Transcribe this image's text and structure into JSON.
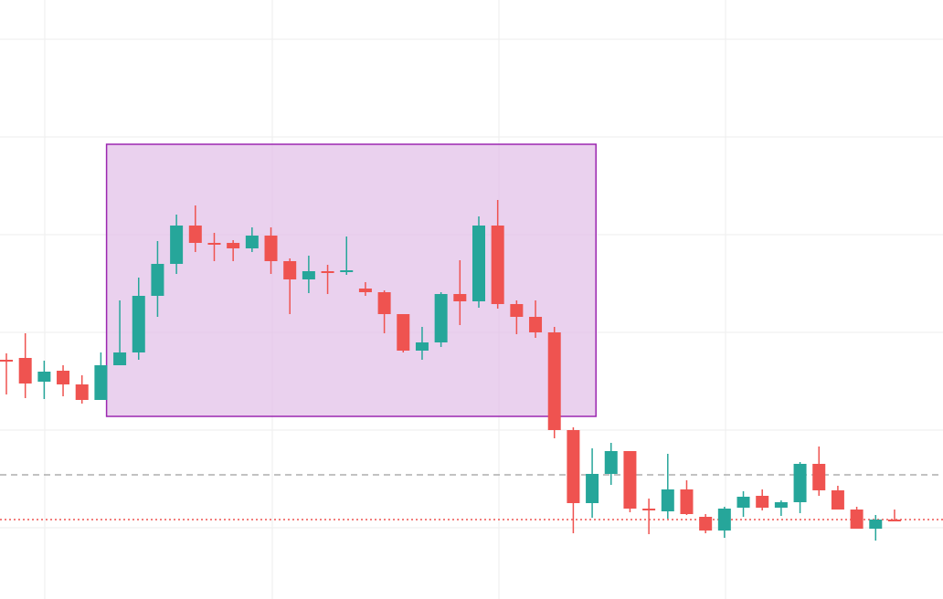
{
  "chart_data": {
    "type": "candlestick",
    "title": "",
    "xlabel": "",
    "ylabel": "",
    "ylim": [
      0,
      656
    ],
    "grid": true,
    "colors": {
      "up": "#26a69a",
      "down": "#ef5350",
      "grid": "#eeeeee",
      "dashed_line": "#9e9e9e",
      "dotted_line": "#ef5350",
      "rect_fill": "#e1bee7",
      "rect_stroke": "#9c27b0"
    },
    "reference_lines": [
      {
        "kind": "dashed",
        "value": 136
      },
      {
        "kind": "dotted",
        "value": 87
      }
    ],
    "highlight_box": {
      "x0": 5.3,
      "x1": 31.2,
      "y0": 200,
      "y1": 498
    },
    "candles": [
      {
        "i": 0,
        "o": 262,
        "h": 269,
        "l": 224,
        "c": 262
      },
      {
        "i": 1,
        "o": 264,
        "h": 291,
        "l": 220,
        "c": 236
      },
      {
        "i": 2,
        "o": 238,
        "h": 261,
        "l": 219,
        "c": 249
      },
      {
        "i": 3,
        "o": 250,
        "h": 256,
        "l": 222,
        "c": 235
      },
      {
        "i": 4,
        "o": 235,
        "h": 245,
        "l": 214,
        "c": 218
      },
      {
        "i": 5,
        "o": 218,
        "h": 270,
        "l": 218,
        "c": 256
      },
      {
        "i": 6,
        "o": 256,
        "h": 327,
        "l": 256,
        "c": 270
      },
      {
        "i": 7,
        "o": 270,
        "h": 352,
        "l": 262,
        "c": 332
      },
      {
        "i": 8,
        "o": 332,
        "h": 392,
        "l": 309,
        "c": 367
      },
      {
        "i": 9,
        "o": 367,
        "h": 421,
        "l": 356,
        "c": 409
      },
      {
        "i": 10,
        "o": 409,
        "h": 431,
        "l": 380,
        "c": 390
      },
      {
        "i": 11,
        "o": 390,
        "h": 401,
        "l": 370,
        "c": 390
      },
      {
        "i": 12,
        "o": 390,
        "h": 393,
        "l": 370,
        "c": 384
      },
      {
        "i": 13,
        "o": 384,
        "h": 407,
        "l": 380,
        "c": 398
      },
      {
        "i": 14,
        "o": 398,
        "h": 407,
        "l": 356,
        "c": 370
      },
      {
        "i": 15,
        "o": 370,
        "h": 373,
        "l": 312,
        "c": 350
      },
      {
        "i": 16,
        "o": 350,
        "h": 376,
        "l": 335,
        "c": 359
      },
      {
        "i": 17,
        "o": 359,
        "h": 366,
        "l": 334,
        "c": 359
      },
      {
        "i": 18,
        "o": 359,
        "h": 397,
        "l": 355,
        "c": 360
      },
      {
        "i": 19,
        "o": 340,
        "h": 347,
        "l": 332,
        "c": 336
      },
      {
        "i": 20,
        "o": 336,
        "h": 338,
        "l": 291,
        "c": 312
      },
      {
        "i": 21,
        "o": 312,
        "h": 312,
        "l": 270,
        "c": 272
      },
      {
        "i": 22,
        "o": 272,
        "h": 298,
        "l": 262,
        "c": 281
      },
      {
        "i": 23,
        "o": 281,
        "h": 336,
        "l": 276,
        "c": 334
      },
      {
        "i": 24,
        "o": 334,
        "h": 371,
        "l": 300,
        "c": 326
      },
      {
        "i": 25,
        "o": 326,
        "h": 419,
        "l": 319,
        "c": 409
      },
      {
        "i": 26,
        "o": 409,
        "h": 437,
        "l": 318,
        "c": 323
      },
      {
        "i": 27,
        "o": 323,
        "h": 327,
        "l": 290,
        "c": 309
      },
      {
        "i": 28,
        "o": 309,
        "h": 327,
        "l": 286,
        "c": 292
      },
      {
        "i": 29,
        "o": 292,
        "h": 298,
        "l": 176,
        "c": 185
      },
      {
        "i": 30,
        "o": 185,
        "h": 188,
        "l": 72,
        "c": 105
      },
      {
        "i": 31,
        "o": 105,
        "h": 165,
        "l": 89,
        "c": 137
      },
      {
        "i": 32,
        "o": 137,
        "h": 171,
        "l": 125,
        "c": 162
      },
      {
        "i": 33,
        "o": 162,
        "h": 162,
        "l": 95,
        "c": 99
      },
      {
        "i": 34,
        "o": 99,
        "h": 110,
        "l": 71,
        "c": 99
      },
      {
        "i": 35,
        "o": 96,
        "h": 159,
        "l": 88,
        "c": 120
      },
      {
        "i": 36,
        "o": 120,
        "h": 130,
        "l": 92,
        "c": 93
      },
      {
        "i": 37,
        "o": 90,
        "h": 93,
        "l": 72,
        "c": 75
      },
      {
        "i": 38,
        "o": 75,
        "h": 101,
        "l": 67,
        "c": 99
      },
      {
        "i": 39,
        "o": 100,
        "h": 118,
        "l": 90,
        "c": 112
      },
      {
        "i": 40,
        "o": 113,
        "h": 120,
        "l": 97,
        "c": 100
      },
      {
        "i": 41,
        "o": 100,
        "h": 108,
        "l": 91,
        "c": 106
      },
      {
        "i": 42,
        "o": 106,
        "h": 150,
        "l": 94,
        "c": 148
      },
      {
        "i": 43,
        "o": 148,
        "h": 167,
        "l": 113,
        "c": 119
      },
      {
        "i": 44,
        "o": 119,
        "h": 124,
        "l": 98,
        "c": 98
      },
      {
        "i": 45,
        "o": 98,
        "h": 101,
        "l": 77,
        "c": 77
      },
      {
        "i": 46,
        "o": 77,
        "h": 92,
        "l": 64,
        "c": 87
      },
      {
        "i": 47,
        "o": 87,
        "h": 98,
        "l": 87,
        "c": 87
      }
    ]
  }
}
